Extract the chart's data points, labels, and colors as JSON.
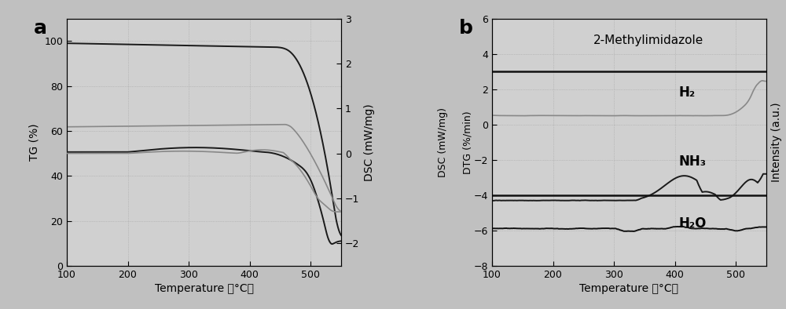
{
  "panel_a": {
    "xlabel": "Temperature （°C）",
    "ylabel_left": "TG (%)",
    "ylabel_right": "DSC (mW/mg)",
    "xlim": [
      100,
      550
    ],
    "ylim_left": [
      0,
      110
    ],
    "ylim_right": [
      -2.5,
      3.0
    ],
    "label": "a"
  },
  "panel_b": {
    "xlabel": "Temperature （°C）",
    "ylabel_right": "Intensity (a.u.)",
    "ylabel_left1": "DSC (mW/mg)",
    "ylabel_left2": "DTG (%/min)",
    "xlim": [
      100,
      550
    ],
    "ylim": [
      -8,
      6
    ],
    "label": "b",
    "annotation": "2-Methylimidazole",
    "sep1": 3.0,
    "sep2": -4.0,
    "labels_h2": "H₂",
    "labels_nh3": "NH₃",
    "labels_h2o": "H₂O"
  },
  "bg_color": "#c0c0c0",
  "plot_bg": "#d0d0d0",
  "dot_color": "#b0b0b0"
}
